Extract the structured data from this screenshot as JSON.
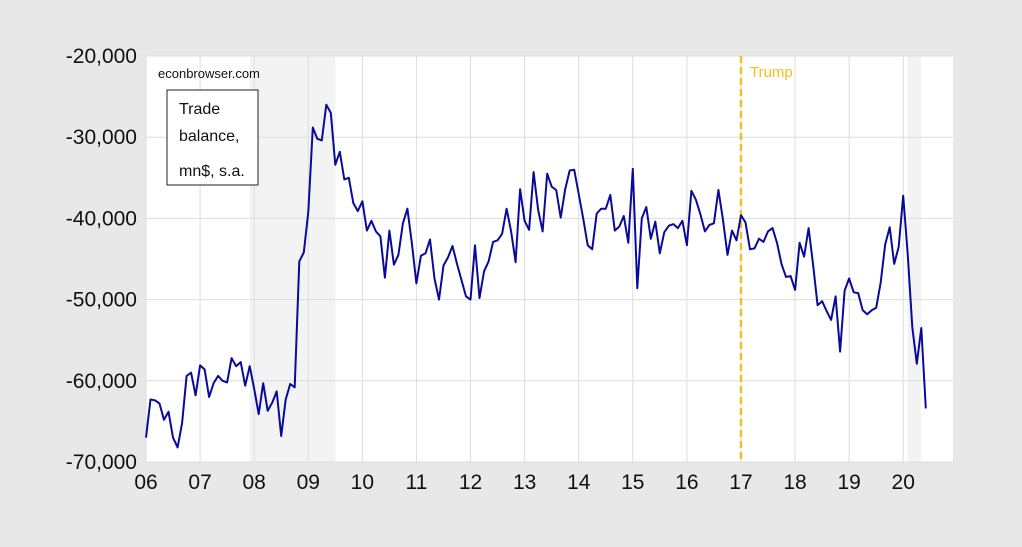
{
  "chart_data": {
    "type": "line",
    "source_note": "econbrowser.com",
    "legend_box": [
      "Trade",
      "balance,",
      "mn$, s.a."
    ],
    "x_tick_labels": [
      "06",
      "07",
      "08",
      "09",
      "10",
      "11",
      "12",
      "13",
      "14",
      "15",
      "16",
      "17",
      "18",
      "19",
      "20"
    ],
    "y_tick_labels": [
      "-20,000",
      "-30,000",
      "-40,000",
      "-50,000",
      "-60,000",
      "-70,000"
    ],
    "y_ticks": [
      -20000,
      -30000,
      -40000,
      -50000,
      -60000,
      -70000
    ],
    "ylim": [
      -70000,
      -20000
    ],
    "xlim": [
      2006.0,
      2020.92
    ],
    "grid": true,
    "recessions": [
      {
        "start": 2007.92,
        "end": 2009.5
      },
      {
        "start": 2020.08,
        "end": 2020.33
      }
    ],
    "vline": {
      "x": 2017.0,
      "label": "Trump",
      "color": "#f0c020"
    },
    "colors": {
      "series": "#0a0a9a",
      "recession": "#f3f3f3",
      "plot_bg": "#ffffff",
      "grid": "#dddddd"
    },
    "series": [
      {
        "start": 2006.0,
        "step": 0.0833333,
        "values": [
          -67000,
          -62300,
          -62400,
          -62800,
          -64800,
          -63800,
          -67000,
          -68200,
          -65200,
          -59400,
          -59000,
          -61800,
          -58100,
          -58600,
          -62000,
          -60300,
          -59400,
          -60000,
          -60200,
          -57200,
          -58200,
          -57700,
          -60600,
          -58200,
          -61000,
          -64100,
          -60300,
          -63700,
          -62700,
          -61300,
          -66800,
          -62300,
          -60400,
          -60800,
          -45300,
          -44200,
          -39200,
          -28800,
          -30200,
          -30400,
          -26000,
          -27000,
          -33400,
          -31800,
          -35200,
          -35000,
          -38100,
          -39100,
          -37900,
          -41500,
          -40300,
          -41600,
          -42200,
          -47300,
          -41500,
          -45700,
          -44500,
          -40600,
          -38800,
          -43100,
          -48000,
          -44600,
          -44300,
          -42600,
          -47400,
          -50000,
          -45800,
          -44800,
          -43400,
          -45600,
          -47600,
          -49600,
          -50000,
          -43300,
          -49800,
          -46500,
          -45300,
          -42900,
          -42700,
          -41900,
          -38800,
          -41600,
          -45400,
          -36400,
          -40300,
          -41400,
          -34300,
          -38900,
          -41600,
          -34500,
          -36100,
          -36500,
          -39900,
          -36400,
          -34100,
          -34000,
          -37000,
          -40000,
          -43300,
          -43800,
          -39400,
          -38800,
          -38800,
          -37100,
          -41500,
          -41000,
          -39700,
          -43000,
          -33900,
          -48600,
          -40000,
          -38600,
          -42500,
          -40400,
          -44300,
          -41700,
          -40900,
          -40700,
          -41200,
          -40300,
          -43300,
          -36600,
          -37700,
          -39500,
          -41600,
          -40800,
          -40600,
          -36500,
          -40100,
          -44500,
          -41500,
          -42700,
          -39600,
          -40500,
          -43800,
          -43700,
          -42500,
          -42900,
          -41600,
          -41200,
          -43000,
          -45600,
          -47200,
          -47100,
          -48800,
          -43000,
          -44700,
          -41200,
          -45700,
          -50700,
          -50200,
          -51400,
          -52500,
          -49600,
          -56400,
          -48900,
          -47400,
          -49100,
          -49200,
          -51300,
          -51800,
          -51300,
          -51000,
          -47900,
          -43200,
          -41100,
          -45600,
          -43500,
          -37200,
          -44400,
          -53400,
          -57900,
          -53500,
          -63400
        ]
      }
    ]
  }
}
